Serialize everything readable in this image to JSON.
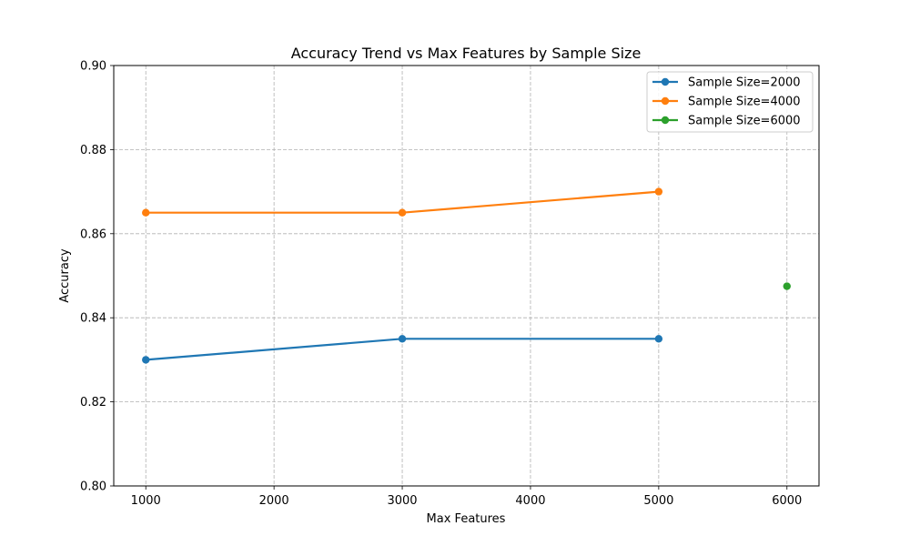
{
  "chart_data": {
    "type": "line",
    "title": "Accuracy Trend vs Max Features by Sample Size",
    "xlabel": "Max Features",
    "ylabel": "Accuracy",
    "xlim": [
      750,
      6250
    ],
    "ylim": [
      0.8,
      0.9
    ],
    "xticks": [
      1000,
      2000,
      3000,
      4000,
      5000,
      6000
    ],
    "xtick_labels": [
      "1000",
      "2000",
      "3000",
      "4000",
      "5000",
      "6000"
    ],
    "yticks": [
      0.8,
      0.82,
      0.84,
      0.86,
      0.88,
      0.9
    ],
    "ytick_labels": [
      "0.80",
      "0.82",
      "0.84",
      "0.86",
      "0.88",
      "0.90"
    ],
    "grid": true,
    "legend_position": "top-right",
    "series": [
      {
        "name": "Sample Size=2000",
        "label": "Sample Size=2000",
        "color": "#1f77b4",
        "x": [
          1000,
          3000,
          5000
        ],
        "y": [
          0.83,
          0.835,
          0.835
        ]
      },
      {
        "name": "Sample Size=4000",
        "label": "Sample Size=4000",
        "color": "#ff7f0e",
        "x": [
          1000,
          3000,
          5000
        ],
        "y": [
          0.865,
          0.865,
          0.87
        ]
      },
      {
        "name": "Sample Size=6000",
        "label": "Sample Size=6000",
        "color": "#2ca02c",
        "x": [
          6000
        ],
        "y": [
          0.8475
        ]
      }
    ]
  }
}
